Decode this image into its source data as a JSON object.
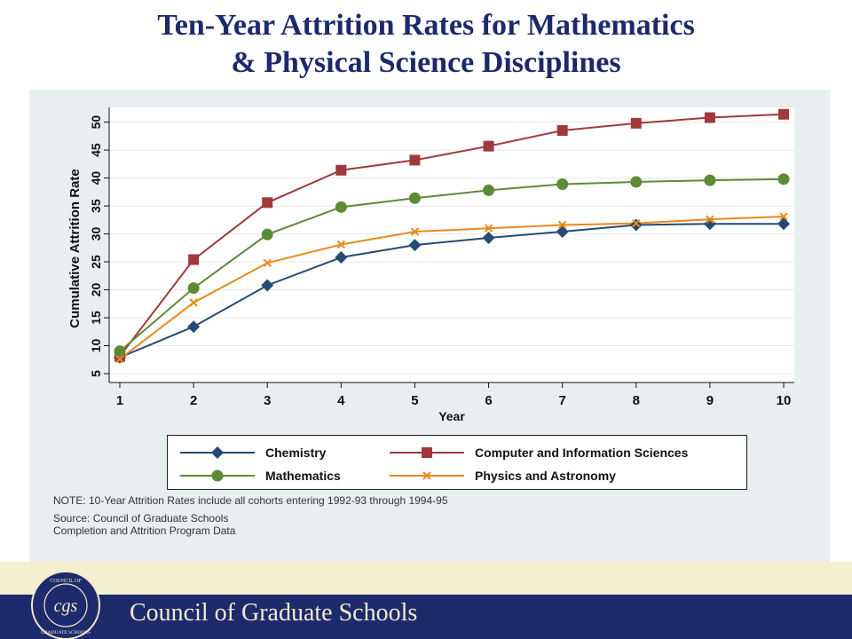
{
  "title_lines": [
    "Ten-Year Attrition Rates for Mathematics",
    "& Physical Science Disciplines"
  ],
  "chart_data": {
    "type": "line",
    "title": "Ten-Year Attrition Rates for Mathematics & Physical Science Disciplines",
    "xlabel": "Year",
    "ylabel": "Cumulative Attrition Rate",
    "x": [
      1,
      2,
      3,
      4,
      5,
      6,
      7,
      8,
      9,
      10
    ],
    "xlim": [
      1,
      10
    ],
    "ylim": [
      5,
      50
    ],
    "yticks": [
      5,
      10,
      15,
      20,
      25,
      30,
      35,
      40,
      45,
      50
    ],
    "grid": true,
    "legend_position": "bottom",
    "series": [
      {
        "name": "Chemistry",
        "marker": "diamond",
        "color": "#244b73",
        "values": [
          7.9,
          13.4,
          20.8,
          25.8,
          28.0,
          29.3,
          30.4,
          31.6,
          31.8,
          31.8
        ]
      },
      {
        "name": "Computer and Information Sciences",
        "marker": "square",
        "color": "#a0393d",
        "values": [
          8.1,
          25.4,
          35.6,
          41.4,
          43.2,
          45.7,
          48.5,
          49.8,
          50.8,
          51.4
        ]
      },
      {
        "name": "Mathematics",
        "marker": "circle",
        "color": "#5e8a36",
        "values": [
          9.0,
          20.3,
          29.9,
          34.8,
          36.4,
          37.8,
          38.9,
          39.3,
          39.6,
          39.8
        ]
      },
      {
        "name": "Physics and Astronomy",
        "marker": "x",
        "color": "#e88a1a",
        "values": [
          7.6,
          17.7,
          24.8,
          28.1,
          30.4,
          31.0,
          31.6,
          31.9,
          32.6,
          33.1
        ]
      }
    ]
  },
  "notes": {
    "note": "NOTE: 10-Year Attrition Rates include all cohorts entering 1992-93 through 1994-95",
    "source_line1": "Source: Council of Graduate Schools",
    "source_line2": "Completion and Attrition Program Data"
  },
  "footer": {
    "organization": "Council of Graduate Schools",
    "logo_text": "COUNCIL OF GRADUATE SCHOOLS",
    "logo_monogram": "cgs",
    "bar_color": "#1d2a6b",
    "strip_color": "#f3efd0"
  }
}
